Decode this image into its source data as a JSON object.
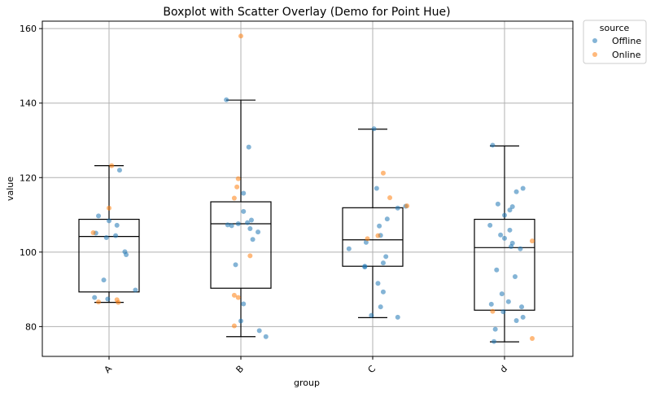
{
  "chart_data": {
    "type": "box",
    "title": "Boxplot with Scatter Overlay (Demo for Point Hue)",
    "xlabel": "group",
    "ylabel": "value",
    "categories": [
      "A",
      "B",
      "C",
      "d"
    ],
    "ylim": [
      72,
      162
    ],
    "yticks": [
      80,
      100,
      120,
      140,
      160
    ],
    "grid": true,
    "legend": {
      "title": "source",
      "placement": "outside-top-right",
      "entries": [
        {
          "name": "Offline",
          "color": "#1f77b4"
        },
        {
          "name": "Online",
          "color": "#ff7f0e"
        }
      ]
    },
    "boxes": [
      {
        "category": "A",
        "whisker_low": 86.5,
        "q1": 89.3,
        "median": 104.2,
        "q3": 108.8,
        "whisker_high": 123.2
      },
      {
        "category": "B",
        "whisker_low": 77.3,
        "q1": 90.3,
        "median": 107.6,
        "q3": 113.5,
        "whisker_high": 140.8
      },
      {
        "category": "C",
        "whisker_low": 82.4,
        "q1": 96.2,
        "median": 103.3,
        "q3": 111.9,
        "whisker_high": 133.0
      },
      {
        "category": "d",
        "whisker_low": 75.9,
        "q1": 84.4,
        "median": 101.2,
        "q3": 108.8,
        "whisker_high": 128.5
      }
    ],
    "series": [
      {
        "name": "Offline",
        "color": "#1f77b4",
        "points": [
          {
            "x": "A",
            "jitter": -0.08,
            "y": 109.7
          },
          {
            "x": "A",
            "jitter": 0.0,
            "y": 108.4
          },
          {
            "x": "A",
            "jitter": 0.06,
            "y": 107.2
          },
          {
            "x": "A",
            "jitter": -0.1,
            "y": 105.1
          },
          {
            "x": "A",
            "jitter": 0.05,
            "y": 104.4
          },
          {
            "x": "A",
            "jitter": -0.02,
            "y": 103.9
          },
          {
            "x": "A",
            "jitter": 0.12,
            "y": 100.1
          },
          {
            "x": "A",
            "jitter": 0.13,
            "y": 99.3
          },
          {
            "x": "A",
            "jitter": -0.04,
            "y": 92.5
          },
          {
            "x": "A",
            "jitter": 0.2,
            "y": 89.8
          },
          {
            "x": "A",
            "jitter": -0.11,
            "y": 87.8
          },
          {
            "x": "A",
            "jitter": -0.01,
            "y": 87.4
          },
          {
            "x": "A",
            "jitter": 0.08,
            "y": 122.0
          },
          {
            "x": "B",
            "jitter": -0.11,
            "y": 140.9
          },
          {
            "x": "B",
            "jitter": 0.06,
            "y": 128.2
          },
          {
            "x": "B",
            "jitter": 0.02,
            "y": 115.8
          },
          {
            "x": "B",
            "jitter": 0.02,
            "y": 110.9
          },
          {
            "x": "B",
            "jitter": 0.08,
            "y": 108.6
          },
          {
            "x": "B",
            "jitter": 0.05,
            "y": 107.9
          },
          {
            "x": "B",
            "jitter": -0.02,
            "y": 107.6
          },
          {
            "x": "B",
            "jitter": -0.1,
            "y": 107.3
          },
          {
            "x": "B",
            "jitter": -0.07,
            "y": 107.1
          },
          {
            "x": "B",
            "jitter": 0.07,
            "y": 106.3
          },
          {
            "x": "B",
            "jitter": 0.13,
            "y": 105.4
          },
          {
            "x": "B",
            "jitter": 0.09,
            "y": 103.4
          },
          {
            "x": "B",
            "jitter": -0.04,
            "y": 96.6
          },
          {
            "x": "B",
            "jitter": 0.02,
            "y": 86.1
          },
          {
            "x": "B",
            "jitter": 0.0,
            "y": 81.5
          },
          {
            "x": "B",
            "jitter": 0.14,
            "y": 78.9
          },
          {
            "x": "B",
            "jitter": 0.19,
            "y": 77.3
          },
          {
            "x": "C",
            "jitter": 0.01,
            "y": 133.1
          },
          {
            "x": "C",
            "jitter": 0.03,
            "y": 117.1
          },
          {
            "x": "C",
            "jitter": 0.19,
            "y": 111.8
          },
          {
            "x": "C",
            "jitter": 0.11,
            "y": 108.9
          },
          {
            "x": "C",
            "jitter": 0.05,
            "y": 107.0
          },
          {
            "x": "C",
            "jitter": 0.06,
            "y": 104.5
          },
          {
            "x": "C",
            "jitter": -0.05,
            "y": 102.6
          },
          {
            "x": "C",
            "jitter": -0.18,
            "y": 100.9
          },
          {
            "x": "C",
            "jitter": 0.1,
            "y": 98.8
          },
          {
            "x": "C",
            "jitter": 0.08,
            "y": 97.1
          },
          {
            "x": "C",
            "jitter": -0.06,
            "y": 96.2
          },
          {
            "x": "C",
            "jitter": -0.06,
            "y": 96.0
          },
          {
            "x": "C",
            "jitter": 0.04,
            "y": 91.6
          },
          {
            "x": "C",
            "jitter": 0.08,
            "y": 89.3
          },
          {
            "x": "C",
            "jitter": 0.06,
            "y": 85.3
          },
          {
            "x": "C",
            "jitter": -0.01,
            "y": 83.0
          },
          {
            "x": "C",
            "jitter": 0.19,
            "y": 82.5
          },
          {
            "x": "C",
            "jitter": 0.25,
            "y": 112.3
          },
          {
            "x": "d",
            "jitter": -0.09,
            "y": 128.7
          },
          {
            "x": "d",
            "jitter": 0.14,
            "y": 117.1
          },
          {
            "x": "d",
            "jitter": 0.09,
            "y": 116.2
          },
          {
            "x": "d",
            "jitter": 0.06,
            "y": 112.2
          },
          {
            "x": "d",
            "jitter": 0.04,
            "y": 111.3
          },
          {
            "x": "d",
            "jitter": -0.05,
            "y": 112.9
          },
          {
            "x": "d",
            "jitter": 0.0,
            "y": 109.9
          },
          {
            "x": "d",
            "jitter": -0.11,
            "y": 107.2
          },
          {
            "x": "d",
            "jitter": -0.03,
            "y": 104.6
          },
          {
            "x": "d",
            "jitter": 0.04,
            "y": 105.9
          },
          {
            "x": "d",
            "jitter": 0.0,
            "y": 103.7
          },
          {
            "x": "d",
            "jitter": 0.06,
            "y": 102.4
          },
          {
            "x": "d",
            "jitter": 0.05,
            "y": 101.5
          },
          {
            "x": "d",
            "jitter": 0.12,
            "y": 100.9
          },
          {
            "x": "d",
            "jitter": -0.06,
            "y": 95.2
          },
          {
            "x": "d",
            "jitter": 0.08,
            "y": 93.4
          },
          {
            "x": "d",
            "jitter": -0.02,
            "y": 88.8
          },
          {
            "x": "d",
            "jitter": 0.03,
            "y": 86.7
          },
          {
            "x": "d",
            "jitter": -0.1,
            "y": 86.0
          },
          {
            "x": "d",
            "jitter": 0.13,
            "y": 85.3
          },
          {
            "x": "d",
            "jitter": 0.14,
            "y": 82.5
          },
          {
            "x": "d",
            "jitter": 0.09,
            "y": 81.6
          },
          {
            "x": "d",
            "jitter": -0.01,
            "y": 84.0
          },
          {
            "x": "d",
            "jitter": -0.07,
            "y": 79.3
          },
          {
            "x": "d",
            "jitter": -0.08,
            "y": 76.0
          }
        ]
      },
      {
        "name": "Online",
        "color": "#ff7f0e",
        "points": [
          {
            "x": "A",
            "jitter": 0.02,
            "y": 123.2
          },
          {
            "x": "A",
            "jitter": 0.0,
            "y": 111.8
          },
          {
            "x": "A",
            "jitter": -0.12,
            "y": 105.2
          },
          {
            "x": "A",
            "jitter": 0.06,
            "y": 87.2
          },
          {
            "x": "A",
            "jitter": 0.07,
            "y": 86.5
          },
          {
            "x": "A",
            "jitter": -0.08,
            "y": 86.6
          },
          {
            "x": "B",
            "jitter": 0.0,
            "y": 158.0
          },
          {
            "x": "B",
            "jitter": -0.02,
            "y": 119.7
          },
          {
            "x": "B",
            "jitter": -0.03,
            "y": 117.5
          },
          {
            "x": "B",
            "jitter": -0.05,
            "y": 114.5
          },
          {
            "x": "B",
            "jitter": 0.07,
            "y": 99.0
          },
          {
            "x": "B",
            "jitter": -0.05,
            "y": 88.4
          },
          {
            "x": "B",
            "jitter": -0.02,
            "y": 87.8
          },
          {
            "x": "B",
            "jitter": -0.05,
            "y": 80.2
          },
          {
            "x": "C",
            "jitter": 0.08,
            "y": 121.2
          },
          {
            "x": "C",
            "jitter": 0.13,
            "y": 114.6
          },
          {
            "x": "C",
            "jitter": 0.26,
            "y": 112.4
          },
          {
            "x": "C",
            "jitter": 0.04,
            "y": 104.4
          },
          {
            "x": "C",
            "jitter": -0.04,
            "y": 103.6
          },
          {
            "x": "d",
            "jitter": 0.21,
            "y": 103.0
          },
          {
            "x": "d",
            "jitter": -0.09,
            "y": 84.1
          },
          {
            "x": "d",
            "jitter": 0.21,
            "y": 76.8
          }
        ]
      }
    ]
  }
}
